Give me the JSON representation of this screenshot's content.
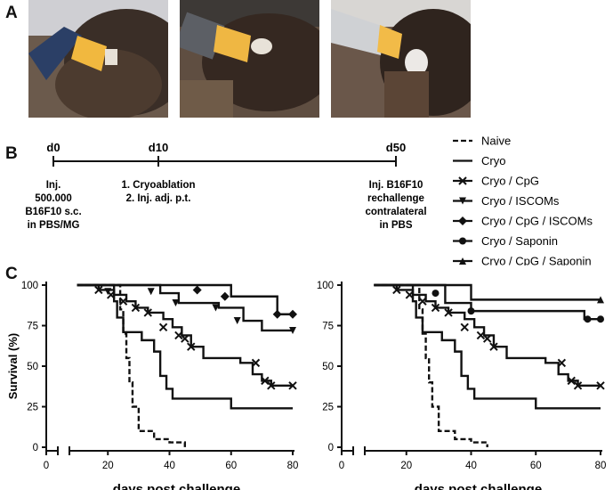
{
  "panels": {
    "a": "A",
    "b": "B",
    "c": "C"
  },
  "timeline": {
    "days": [
      {
        "label": "d0",
        "text": [
          "Inj.",
          "500.000",
          "B16F10 s.c.",
          "in PBS/MG"
        ]
      },
      {
        "label": "d10",
        "text": [
          "1. Cryoablation",
          "2. Inj. adj. p.t."
        ]
      },
      {
        "label": "d50",
        "text": [
          "Inj. B16F10",
          "rechallenge",
          "contralateral",
          "in PBS"
        ]
      }
    ]
  },
  "legend": [
    {
      "name": "Naive",
      "style": "dashed",
      "marker": "none"
    },
    {
      "name": "Cryo",
      "style": "solid",
      "marker": "none"
    },
    {
      "name": "Cryo / CpG",
      "style": "solid",
      "marker": "x"
    },
    {
      "name": "Cryo / ISCOMs",
      "style": "solid",
      "marker": "triangle-down"
    },
    {
      "name": "Cryo / CpG / ISCOMs",
      "style": "solid",
      "marker": "diamond"
    },
    {
      "name": "Cryo / Saponin",
      "style": "solid",
      "marker": "circle"
    },
    {
      "name": "Cryo / CpG / Saponin",
      "style": "solid",
      "marker": "triangle-up"
    }
  ],
  "chart_data": [
    {
      "type": "line",
      "xlabel": "days post challenge",
      "ylabel": "Survival (%)",
      "xlim": [
        0,
        80
      ],
      "ylim": [
        0,
        100
      ],
      "xticks": [
        0,
        20,
        40,
        60,
        80
      ],
      "yticks": [
        0,
        25,
        50,
        75,
        100
      ],
      "series": [
        {
          "name": "Naive",
          "style": "dashed",
          "marker": "none",
          "x": [
            10,
            22,
            24,
            25,
            26,
            27,
            28,
            30,
            35,
            40,
            45
          ],
          "y": [
            100,
            100,
            85,
            70,
            55,
            40,
            25,
            10,
            5,
            3,
            0
          ]
        },
        {
          "name": "Cryo",
          "style": "solid",
          "marker": "none",
          "x": [
            10,
            20,
            22,
            23,
            25,
            31,
            35,
            37,
            39,
            41,
            60,
            80
          ],
          "y": [
            100,
            100,
            90,
            80,
            71,
            66,
            59,
            44,
            36,
            30,
            24,
            24
          ]
        },
        {
          "name": "Cryo / CpG",
          "style": "solid",
          "marker": "x",
          "x": [
            10,
            17,
            22,
            26,
            29,
            33,
            38,
            41,
            44,
            47,
            51,
            57,
            63,
            67,
            70,
            73,
            80
          ],
          "y": [
            100,
            97,
            94,
            90,
            86,
            83,
            79,
            74,
            69,
            62,
            55,
            55,
            52,
            45,
            41,
            38,
            38
          ],
          "markers_x": [
            17,
            21,
            25,
            29,
            33,
            38,
            43,
            45,
            47,
            68,
            71,
            73,
            80
          ],
          "markers_y": [
            97,
            94,
            90,
            86,
            83,
            74,
            69,
            67,
            62,
            52,
            41,
            38,
            38
          ]
        },
        {
          "name": "Cryo / ISCOMs",
          "style": "solid",
          "marker": "triangle-down",
          "x": [
            10,
            34,
            37,
            43,
            56,
            64,
            70,
            80
          ],
          "y": [
            100,
            100,
            95,
            89,
            86,
            78,
            72,
            72
          ],
          "markers_x": [
            20,
            34,
            42,
            55,
            62,
            80
          ],
          "markers_y": [
            96,
            96,
            89,
            86,
            78,
            72
          ]
        },
        {
          "name": "Cryo / CpG / ISCOMs",
          "style": "solid",
          "marker": "diamond",
          "x": [
            10,
            50,
            60,
            75,
            80
          ],
          "y": [
            100,
            100,
            93,
            82,
            82
          ],
          "markers_x": [
            49,
            58,
            75,
            80
          ],
          "markers_y": [
            97,
            93,
            82,
            82
          ]
        }
      ]
    },
    {
      "type": "line",
      "xlabel": "days post challenge",
      "ylabel": "",
      "xlim": [
        0,
        80
      ],
      "ylim": [
        0,
        100
      ],
      "xticks": [
        0,
        20,
        40,
        60,
        80
      ],
      "yticks": [
        0,
        25,
        50,
        75,
        100
      ],
      "series": [
        {
          "name": "Naive",
          "style": "dashed",
          "marker": "none",
          "x": [
            10,
            22,
            24,
            25,
            26,
            27,
            28,
            30,
            35,
            40,
            45
          ],
          "y": [
            100,
            100,
            85,
            70,
            55,
            40,
            25,
            10,
            5,
            3,
            0
          ]
        },
        {
          "name": "Cryo",
          "style": "solid",
          "marker": "none",
          "x": [
            10,
            20,
            22,
            23,
            25,
            31,
            35,
            37,
            39,
            41,
            60,
            80
          ],
          "y": [
            100,
            100,
            90,
            80,
            71,
            66,
            59,
            44,
            36,
            30,
            24,
            24
          ]
        },
        {
          "name": "Cryo / CpG",
          "style": "solid",
          "marker": "x",
          "x": [
            10,
            17,
            22,
            26,
            29,
            33,
            38,
            41,
            44,
            47,
            51,
            57,
            63,
            67,
            70,
            73,
            80
          ],
          "y": [
            100,
            97,
            94,
            90,
            86,
            83,
            79,
            74,
            69,
            62,
            55,
            55,
            52,
            45,
            41,
            38,
            38
          ],
          "markers_x": [
            17,
            21,
            25,
            29,
            33,
            38,
            43,
            45,
            47,
            68,
            71,
            73,
            80
          ],
          "markers_y": [
            97,
            94,
            90,
            86,
            83,
            74,
            69,
            67,
            62,
            52,
            41,
            38,
            38
          ]
        },
        {
          "name": "Cryo / Saponin",
          "style": "solid",
          "marker": "circle",
          "x": [
            10,
            28,
            32,
            40,
            75,
            80
          ],
          "y": [
            100,
            100,
            89,
            84,
            79,
            79
          ],
          "markers_x": [
            29,
            40,
            76,
            80
          ],
          "markers_y": [
            95,
            84,
            79,
            79
          ]
        },
        {
          "name": "Cryo / CpG / Saponin",
          "style": "solid",
          "marker": "triangle-up",
          "x": [
            10,
            40,
            80
          ],
          "y": [
            100,
            91,
            91
          ],
          "markers_x": [
            80
          ],
          "markers_y": [
            91
          ]
        }
      ]
    }
  ]
}
